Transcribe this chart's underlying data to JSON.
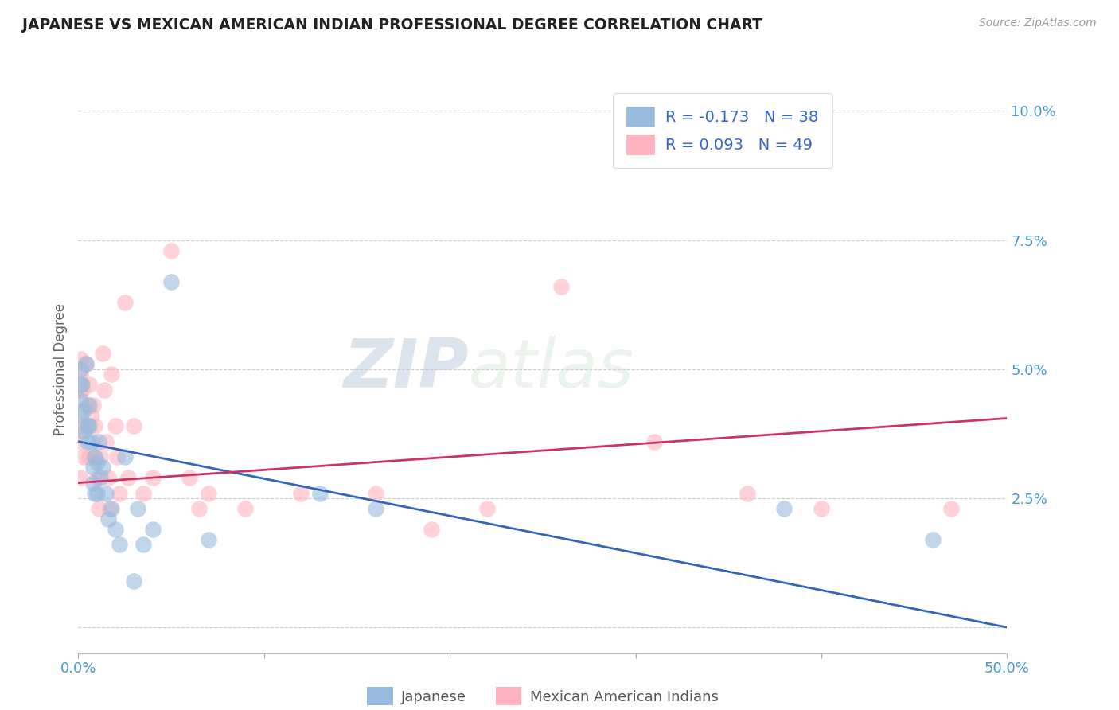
{
  "title": "JAPANESE VS MEXICAN AMERICAN INDIAN PROFESSIONAL DEGREE CORRELATION CHART",
  "source": "Source: ZipAtlas.com",
  "ylabel": "Professional Degree",
  "xlim": [
    0.0,
    0.5
  ],
  "ylim": [
    -0.005,
    0.105
  ],
  "xticks": [
    0.0,
    0.1,
    0.2,
    0.3,
    0.4,
    0.5
  ],
  "xticklabels": [
    "0.0%",
    "",
    "",
    "",
    "",
    "50.0%"
  ],
  "yticks": [
    0.025,
    0.05,
    0.075,
    0.1
  ],
  "yticklabels": [
    "2.5%",
    "5.0%",
    "7.5%",
    "10.0%"
  ],
  "grid_yticks": [
    0.0,
    0.025,
    0.05,
    0.075,
    0.1
  ],
  "watermark_zip": "ZIP",
  "watermark_atlas": "atlas",
  "legend_r1": "R = -0.173",
  "legend_n1": "N = 38",
  "legend_r2": "R = 0.093",
  "legend_n2": "N = 49",
  "legend_label1": "Japanese",
  "legend_label2": "Mexican American Indians",
  "color1": "#99BBDD",
  "color2": "#FFB3C1",
  "line_color1": "#3366BB",
  "line_color2": "#CC3366",
  "line_color1_dash": "#AABBDD",
  "background_color": "#FFFFFF",
  "japanese_x": [
    0.001,
    0.001,
    0.001,
    0.001,
    0.002,
    0.003,
    0.003,
    0.004,
    0.005,
    0.005,
    0.006,
    0.006,
    0.007,
    0.008,
    0.008,
    0.009,
    0.009,
    0.01,
    0.01,
    0.011,
    0.012,
    0.013,
    0.015,
    0.016,
    0.018,
    0.02,
    0.022,
    0.025,
    0.03,
    0.032,
    0.035,
    0.04,
    0.05,
    0.07,
    0.13,
    0.16,
    0.38,
    0.46
  ],
  "japanese_y": [
    0.05,
    0.047,
    0.044,
    0.041,
    0.047,
    0.042,
    0.038,
    0.051,
    0.039,
    0.036,
    0.043,
    0.039,
    0.036,
    0.031,
    0.028,
    0.033,
    0.026,
    0.032,
    0.026,
    0.036,
    0.029,
    0.031,
    0.026,
    0.021,
    0.023,
    0.019,
    0.016,
    0.033,
    0.009,
    0.023,
    0.016,
    0.019,
    0.067,
    0.017,
    0.026,
    0.023,
    0.023,
    0.017
  ],
  "mexican_x": [
    0.001,
    0.001,
    0.001,
    0.001,
    0.001,
    0.001,
    0.002,
    0.003,
    0.003,
    0.004,
    0.005,
    0.005,
    0.006,
    0.006,
    0.007,
    0.008,
    0.009,
    0.009,
    0.01,
    0.011,
    0.012,
    0.013,
    0.014,
    0.015,
    0.016,
    0.017,
    0.018,
    0.02,
    0.021,
    0.022,
    0.025,
    0.027,
    0.03,
    0.035,
    0.04,
    0.05,
    0.06,
    0.065,
    0.07,
    0.09,
    0.12,
    0.16,
    0.19,
    0.22,
    0.26,
    0.31,
    0.36,
    0.4,
    0.47
  ],
  "mexican_y": [
    0.052,
    0.049,
    0.046,
    0.039,
    0.036,
    0.029,
    0.046,
    0.039,
    0.033,
    0.051,
    0.043,
    0.039,
    0.033,
    0.047,
    0.041,
    0.043,
    0.039,
    0.033,
    0.029,
    0.023,
    0.033,
    0.053,
    0.046,
    0.036,
    0.029,
    0.023,
    0.049,
    0.039,
    0.033,
    0.026,
    0.063,
    0.029,
    0.039,
    0.026,
    0.029,
    0.073,
    0.029,
    0.023,
    0.026,
    0.023,
    0.026,
    0.026,
    0.019,
    0.023,
    0.066,
    0.036,
    0.026,
    0.023,
    0.023
  ],
  "blue_intercept": 0.036,
  "blue_slope": -0.072,
  "pink_intercept": 0.028,
  "pink_slope": 0.025
}
